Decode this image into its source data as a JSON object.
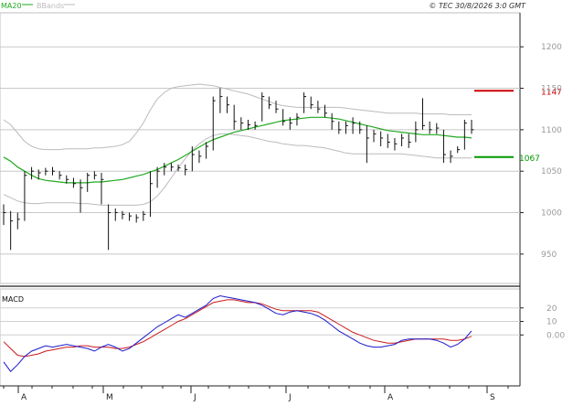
{
  "header": {
    "legend": [
      {
        "label": "MA20",
        "color": "#22aa22"
      },
      {
        "label": "BBands",
        "color": "#bbbbbb"
      }
    ],
    "copyright": "© TEC 30/8/2026 3:0 GMT"
  },
  "chart_data": [
    {
      "type": "line",
      "title": "",
      "xlabel": "",
      "ylabel": "",
      "ylim": [
        930,
        1230
      ],
      "yticks": [
        950,
        1000,
        1050,
        1100,
        1150,
        1200
      ],
      "grid": true,
      "legend_position": "top-left",
      "x_month_labels": [
        "A",
        "M",
        "J",
        "J",
        "A",
        "S"
      ],
      "levels": [
        {
          "label": "1147",
          "value": 1147,
          "color": "#cc0000"
        },
        {
          "label": "1067",
          "value": 1067,
          "color": "#009900"
        }
      ],
      "series": [
        {
          "name": "MA20",
          "color": "#22aa22",
          "values": [
            1067,
            1062,
            1055,
            1050,
            1045,
            1041,
            1039,
            1038,
            1037,
            1036,
            1036,
            1036,
            1036,
            1037,
            1037,
            1038,
            1039,
            1040,
            1042,
            1044,
            1046,
            1049,
            1052,
            1056,
            1060,
            1064,
            1069,
            1074,
            1079,
            1084,
            1088,
            1091,
            1094,
            1097,
            1099,
            1101,
            1103,
            1105,
            1107,
            1109,
            1111,
            1112,
            1113,
            1114,
            1115,
            1115,
            1115,
            1114,
            1113,
            1111,
            1109,
            1107,
            1105,
            1103,
            1101,
            1099,
            1098,
            1097,
            1096,
            1095,
            1094,
            1094,
            1094,
            1093,
            1092,
            1091,
            1091,
            1090
          ]
        }
      ],
      "bbands": {
        "upper": [
          1112,
          1106,
          1096,
          1086,
          1080,
          1077,
          1076,
          1076,
          1076,
          1077,
          1077,
          1077,
          1077,
          1078,
          1078,
          1079,
          1080,
          1082,
          1086,
          1096,
          1108,
          1124,
          1137,
          1145,
          1150,
          1152,
          1153,
          1154,
          1155,
          1154,
          1153,
          1151,
          1149,
          1147,
          1145,
          1143,
          1140,
          1137,
          1134,
          1131,
          1129,
          1128,
          1127,
          1127,
          1127,
          1127,
          1127,
          1127,
          1127,
          1126,
          1125,
          1124,
          1123,
          1122,
          1121,
          1120,
          1120,
          1120,
          1120,
          1120,
          1119,
          1119,
          1119,
          1119,
          1118,
          1118,
          1118,
          1118
        ],
        "lower": [
          1022,
          1018,
          1014,
          1012,
          1011,
          1011,
          1012,
          1012,
          1012,
          1012,
          1012,
          1011,
          1011,
          1010,
          1009,
          1009,
          1009,
          1009,
          1009,
          1009,
          1010,
          1013,
          1020,
          1030,
          1042,
          1054,
          1065,
          1075,
          1083,
          1089,
          1093,
          1095,
          1095,
          1094,
          1093,
          1092,
          1090,
          1088,
          1086,
          1085,
          1083,
          1082,
          1081,
          1081,
          1080,
          1079,
          1078,
          1076,
          1074,
          1072,
          1071,
          1071,
          1071,
          1071,
          1071,
          1071,
          1071,
          1071,
          1070,
          1069,
          1068,
          1067,
          1066,
          1066,
          1066,
          1066,
          1066,
          1066
        ],
        "color": "#bbbbbb"
      },
      "ohlc": {
        "color": "#111111",
        "bars": [
          {
            "h": 1010,
            "l": 985,
            "c": 1000
          },
          {
            "h": 1002,
            "l": 955,
            "c": 990
          },
          {
            "h": 1000,
            "l": 980,
            "c": 992
          },
          {
            "h": 1050,
            "l": 990,
            "c": 1045
          },
          {
            "h": 1055,
            "l": 1040,
            "c": 1050
          },
          {
            "h": 1052,
            "l": 1040,
            "c": 1048
          },
          {
            "h": 1054,
            "l": 1045,
            "c": 1050
          },
          {
            "h": 1055,
            "l": 1045,
            "c": 1050
          },
          {
            "h": 1050,
            "l": 1040,
            "c": 1045
          },
          {
            "h": 1045,
            "l": 1035,
            "c": 1040
          },
          {
            "h": 1042,
            "l": 1030,
            "c": 1035
          },
          {
            "h": 1040,
            "l": 1000,
            "c": 1030
          },
          {
            "h": 1048,
            "l": 1025,
            "c": 1045
          },
          {
            "h": 1050,
            "l": 1040,
            "c": 1045
          },
          {
            "h": 1048,
            "l": 1010,
            "c": 1040
          },
          {
            "h": 1010,
            "l": 955,
            "c": 1000
          },
          {
            "h": 1005,
            "l": 990,
            "c": 1000
          },
          {
            "h": 1002,
            "l": 992,
            "c": 998
          },
          {
            "h": 1000,
            "l": 990,
            "c": 996
          },
          {
            "h": 998,
            "l": 988,
            "c": 994
          },
          {
            "h": 1002,
            "l": 990,
            "c": 998
          },
          {
            "h": 1050,
            "l": 995,
            "c": 1035
          },
          {
            "h": 1055,
            "l": 1030,
            "c": 1050
          },
          {
            "h": 1060,
            "l": 1045,
            "c": 1055
          },
          {
            "h": 1060,
            "l": 1050,
            "c": 1055
          },
          {
            "h": 1058,
            "l": 1050,
            "c": 1054
          },
          {
            "h": 1058,
            "l": 1045,
            "c": 1052
          },
          {
            "h": 1080,
            "l": 1050,
            "c": 1070
          },
          {
            "h": 1075,
            "l": 1060,
            "c": 1068
          },
          {
            "h": 1085,
            "l": 1065,
            "c": 1080
          },
          {
            "h": 1140,
            "l": 1075,
            "c": 1135
          },
          {
            "h": 1150,
            "l": 1120,
            "c": 1140
          },
          {
            "h": 1140,
            "l": 1120,
            "c": 1130
          },
          {
            "h": 1130,
            "l": 1100,
            "c": 1110
          },
          {
            "h": 1115,
            "l": 1100,
            "c": 1108
          },
          {
            "h": 1112,
            "l": 1100,
            "c": 1106
          },
          {
            "h": 1110,
            "l": 1100,
            "c": 1105
          },
          {
            "h": 1145,
            "l": 1110,
            "c": 1140
          },
          {
            "h": 1140,
            "l": 1125,
            "c": 1130
          },
          {
            "h": 1135,
            "l": 1120,
            "c": 1125
          },
          {
            "h": 1125,
            "l": 1105,
            "c": 1110
          },
          {
            "h": 1115,
            "l": 1100,
            "c": 1108
          },
          {
            "h": 1120,
            "l": 1105,
            "c": 1115
          },
          {
            "h": 1145,
            "l": 1120,
            "c": 1140
          },
          {
            "h": 1140,
            "l": 1125,
            "c": 1130
          },
          {
            "h": 1135,
            "l": 1120,
            "c": 1125
          },
          {
            "h": 1130,
            "l": 1115,
            "c": 1120
          },
          {
            "h": 1120,
            "l": 1100,
            "c": 1110
          },
          {
            "h": 1110,
            "l": 1095,
            "c": 1100
          },
          {
            "h": 1110,
            "l": 1095,
            "c": 1105
          },
          {
            "h": 1115,
            "l": 1095,
            "c": 1108
          },
          {
            "h": 1110,
            "l": 1095,
            "c": 1100
          },
          {
            "h": 1105,
            "l": 1060,
            "c": 1090
          },
          {
            "h": 1100,
            "l": 1085,
            "c": 1095
          },
          {
            "h": 1098,
            "l": 1080,
            "c": 1090
          },
          {
            "h": 1095,
            "l": 1078,
            "c": 1085
          },
          {
            "h": 1090,
            "l": 1075,
            "c": 1083
          },
          {
            "h": 1095,
            "l": 1080,
            "c": 1090
          },
          {
            "h": 1095,
            "l": 1078,
            "c": 1085
          },
          {
            "h": 1110,
            "l": 1085,
            "c": 1100
          },
          {
            "h": 1138,
            "l": 1100,
            "c": 1105
          },
          {
            "h": 1110,
            "l": 1095,
            "c": 1100
          },
          {
            "h": 1108,
            "l": 1095,
            "c": 1102
          },
          {
            "h": 1100,
            "l": 1060,
            "c": 1070
          },
          {
            "h": 1075,
            "l": 1060,
            "c": 1068
          },
          {
            "h": 1080,
            "l": 1072,
            "c": 1076
          },
          {
            "h": 1112,
            "l": 1076,
            "c": 1108
          },
          {
            "h": 1112,
            "l": 1095,
            "c": 1100
          }
        ]
      }
    },
    {
      "type": "line",
      "title": "MACD",
      "xlabel": "",
      "ylabel": "",
      "ylim": [
        -35,
        30
      ],
      "yticks": [
        0,
        10,
        20
      ],
      "ytick_labels": [
        "0.00",
        "10",
        "20"
      ],
      "grid": true,
      "series": [
        {
          "name": "",
          "color": "#1a1acc",
          "values": [
            -20,
            -27,
            -22,
            -16,
            -12,
            -10,
            -8,
            -9,
            -8,
            -7,
            -8,
            -9,
            -10,
            -12,
            -9,
            -7,
            -9,
            -12,
            -10,
            -6,
            -2,
            2,
            6,
            9,
            12,
            15,
            13,
            16,
            19,
            22,
            27,
            29,
            28,
            27,
            26,
            25,
            24,
            22,
            19,
            16,
            15,
            17,
            18,
            17,
            16,
            14,
            11,
            7,
            3,
            0,
            -3,
            -6,
            -8,
            -9,
            -9,
            -8,
            -7,
            -4,
            -3,
            -3,
            -3,
            -3,
            -4,
            -6,
            -9,
            -7,
            -3,
            3
          ]
        },
        {
          "name": "",
          "color": "#cc1a1a",
          "values": [
            -5,
            -10,
            -15,
            -16,
            -15,
            -14,
            -12,
            -11,
            -10,
            -9,
            -9,
            -8,
            -8,
            -9,
            -9,
            -9,
            -10,
            -10,
            -9,
            -7,
            -5,
            -2,
            1,
            4,
            7,
            10,
            12,
            15,
            18,
            21,
            24,
            25,
            26,
            26,
            25,
            24,
            24,
            23,
            21,
            19,
            18,
            18,
            18,
            18,
            18,
            17,
            14,
            11,
            8,
            5,
            2,
            0,
            -2,
            -4,
            -5,
            -6,
            -6,
            -5,
            -4,
            -3,
            -3,
            -3,
            -3,
            -3,
            -4,
            -4,
            -3,
            -1
          ]
        }
      ]
    }
  ]
}
